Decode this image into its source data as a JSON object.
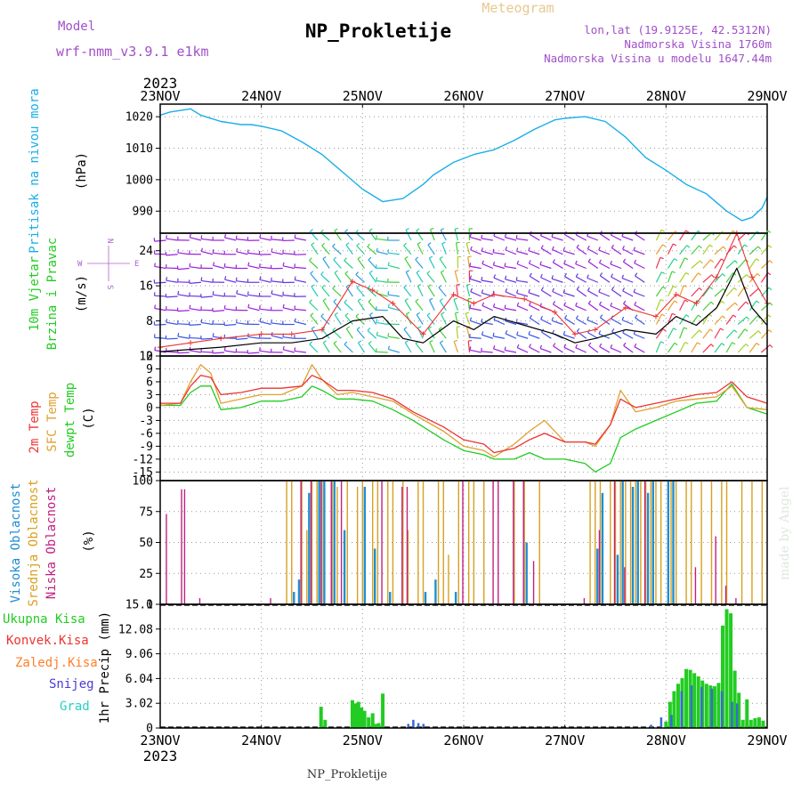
{
  "header": {
    "model_label": "Model",
    "model_value": "wrf-nmm_v3.9.1 e1km",
    "title": "NP_Prokletije",
    "product": "Meteogram",
    "coords": "lon,lat (19.9125E, 42.5312N)",
    "altitude": "Nadmorska Visina 1760m",
    "model_altitude": "Nadmorska Visina u modelu 1647.44m",
    "year_top": "2023",
    "year_bottom": "2023",
    "footer": "NP_Prokletije",
    "credit": "made by Angel"
  },
  "colors": {
    "pressure": "#1aaee8",
    "t2m": "#ee3333",
    "sfc": "#e0a030",
    "dew": "#22cc22",
    "high_cloud": "#1f8fd0",
    "mid_cloud": "#d8a020",
    "low_cloud": "#c02080",
    "total_precip": "#22cc22",
    "conv_precip": "#ee3333",
    "frozen_precip": "#ff7f2a",
    "snow": "#4a3ad8",
    "hail": "#2ad0c0",
    "wind_speed": "#000000",
    "gust": "#ee3333",
    "compass": "#b060d0"
  },
  "chart_data": [
    {
      "panel": "pressure",
      "type": "line",
      "ylabel": "Pritisak na nivou mora",
      "unit": "(hPa)",
      "ylim": [
        983,
        1024
      ],
      "yticks": [
        990,
        1000,
        1010,
        1020
      ],
      "grid": true,
      "x_days": [
        0,
        0.1,
        0.2,
        0.3,
        0.4,
        0.5,
        0.6,
        0.7,
        0.8,
        0.9,
        1,
        1.2,
        1.4,
        1.6,
        1.8,
        2,
        2.2,
        2.4,
        2.6,
        2.7,
        2.9,
        3.1,
        3.3,
        3.5,
        3.7,
        3.9,
        4,
        4.2,
        4.4,
        4.6,
        4.8,
        5,
        5.2,
        5.4,
        5.6,
        5.75,
        5.85,
        5.95
      ],
      "values": [
        1020.5,
        1021.5,
        1022,
        1022.5,
        1020.5,
        1019.5,
        1018.5,
        1018,
        1017.5,
        1017.5,
        1017,
        1015.5,
        1012,
        1008,
        1002.5,
        997,
        993,
        994,
        998.5,
        1001.5,
        1005.5,
        1008,
        1009.5,
        1012.5,
        1016,
        1019,
        1019.5,
        1020,
        1018.5,
        1013.5,
        1007,
        1003,
        998.5,
        995.5,
        990,
        987,
        988,
        991
      ],
      "values_tail": [
        994.5
      ]
    },
    {
      "panel": "wind",
      "type": "line",
      "ylabel": "10m Vjetar",
      "ylabel2": "Brzina i Pravac",
      "unit": "(m/s)",
      "ylim": [
        0,
        28
      ],
      "yticks": [
        0,
        8,
        16,
        24
      ],
      "compass": {
        "north": "N",
        "south": "S",
        "east": "E",
        "west": "W"
      },
      "series": [
        {
          "name": "speed",
          "x_days": [
            0,
            0.3,
            0.6,
            1,
            1.3,
            1.6,
            1.9,
            2.2,
            2.4,
            2.6,
            2.9,
            3.1,
            3.3,
            3.6,
            3.9,
            4.1,
            4.3,
            4.6,
            4.9,
            5.1,
            5.3,
            5.5,
            5.7,
            5.85,
            6
          ],
          "values": [
            1,
            1.5,
            2,
            3,
            3,
            4,
            8,
            9,
            4,
            3,
            8,
            6,
            9,
            7,
            5,
            3,
            4,
            6,
            5,
            9,
            7,
            11,
            20,
            11,
            7
          ]
        },
        {
          "name": "gust",
          "x_days": [
            0,
            0.3,
            0.6,
            1,
            1.3,
            1.6,
            1.9,
            2.1,
            2.3,
            2.6,
            2.9,
            3.1,
            3.3,
            3.6,
            3.9,
            4.1,
            4.3,
            4.6,
            4.9,
            5.1,
            5.3,
            5.5,
            5.7,
            5.85,
            6
          ],
          "values": [
            2,
            3,
            4,
            5,
            5,
            6,
            17,
            15,
            12,
            5,
            14,
            12,
            14,
            13,
            10,
            5,
            6,
            11,
            9,
            14,
            12,
            18,
            28,
            18,
            12
          ]
        }
      ],
      "barbs_direction_deg": [
        [
          0,
          1.55,
          275
        ],
        [
          1.55,
          2.15,
          320
        ],
        [
          2.15,
          2.45,
          280
        ],
        [
          2.45,
          2.85,
          330
        ],
        [
          2.85,
          3.15,
          350
        ],
        [
          3.15,
          3.7,
          285
        ],
        [
          3.7,
          4.2,
          295
        ],
        [
          4.2,
          4.9,
          300
        ],
        [
          4.9,
          5.15,
          30
        ],
        [
          5.15,
          6,
          40
        ]
      ]
    },
    {
      "panel": "temperature",
      "type": "line",
      "ylabels": [
        "2m Temp",
        "SFC Temp",
        "dewpt Temp"
      ],
      "unit": "(C)",
      "ylim": [
        -17,
        12
      ],
      "yticks": [
        -15,
        -12,
        -9,
        -6,
        -3,
        0,
        3,
        6,
        9,
        12
      ],
      "series": [
        {
          "name": "2m Temp",
          "x_days": [
            0,
            0.2,
            0.3,
            0.4,
            0.5,
            0.6,
            0.8,
            1,
            1.2,
            1.4,
            1.5,
            1.6,
            1.75,
            1.9,
            2.1,
            2.3,
            2.5,
            2.8,
            3,
            3.2,
            3.3,
            3.5,
            3.65,
            3.8,
            4,
            4.2,
            4.3,
            4.45,
            4.55,
            4.7,
            4.9,
            5.1,
            5.3,
            5.5,
            5.65,
            5.8,
            6
          ],
          "values": [
            1,
            1,
            5,
            7.5,
            7,
            3,
            3.5,
            4.5,
            4.5,
            5,
            7.5,
            6.5,
            4,
            4,
            3.5,
            2,
            -1,
            -4.5,
            -7.5,
            -8.5,
            -10.5,
            -9.5,
            -7.5,
            -6,
            -8,
            -8,
            -8.5,
            -4,
            2,
            0,
            1,
            2,
            3,
            3.5,
            6,
            2.5,
            1
          ]
        },
        {
          "name": "SFC Temp",
          "x_days": [
            0,
            0.2,
            0.3,
            0.4,
            0.5,
            0.6,
            0.8,
            1,
            1.2,
            1.4,
            1.5,
            1.6,
            1.75,
            1.9,
            2.1,
            2.3,
            2.5,
            2.8,
            3,
            3.2,
            3.3,
            3.5,
            3.65,
            3.8,
            4,
            4.2,
            4.3,
            4.45,
            4.55,
            4.7,
            4.9,
            5.1,
            5.3,
            5.5,
            5.65,
            5.8,
            6
          ],
          "values": [
            0.5,
            1,
            6,
            10,
            8,
            1,
            2,
            3,
            3,
            5,
            10,
            6.5,
            3,
            3.5,
            2.5,
            1.5,
            -1.5,
            -5.5,
            -9,
            -10,
            -11.5,
            -8.5,
            -5.5,
            -3,
            -8,
            -8,
            -9,
            -4,
            4,
            -1,
            0,
            1.5,
            2,
            2.5,
            5,
            0,
            -0.5
          ]
        },
        {
          "name": "dewpt Temp",
          "x_days": [
            0,
            0.2,
            0.3,
            0.4,
            0.5,
            0.6,
            0.8,
            1,
            1.2,
            1.4,
            1.5,
            1.6,
            1.75,
            1.9,
            2.1,
            2.3,
            2.5,
            2.8,
            3,
            3.2,
            3.3,
            3.5,
            3.65,
            3.8,
            4,
            4.2,
            4.3,
            4.45,
            4.55,
            4.7,
            4.9,
            5.1,
            5.3,
            5.5,
            5.65,
            5.8,
            6
          ],
          "values": [
            0.5,
            0.5,
            3.5,
            5,
            5,
            -0.5,
            0,
            1.5,
            1.5,
            2.5,
            5,
            4,
            2,
            2,
            1.5,
            -0.5,
            -3,
            -7.5,
            -10,
            -11,
            -12,
            -12,
            -10.5,
            -12,
            -12,
            -13,
            -15,
            -13,
            -7,
            -5,
            -3,
            -1,
            1,
            1.5,
            5.5,
            0,
            -1.5
          ]
        }
      ]
    },
    {
      "panel": "clouds",
      "type": "bar",
      "ylabels": [
        "Visoka Oblacnost",
        "Srednja Oblacnost",
        "Niska Oblacnost"
      ],
      "unit": "(%)",
      "ylim": [
        0,
        100
      ],
      "yticks": [
        0,
        25,
        50,
        75,
        100
      ],
      "series": [
        {
          "name": "Visoka Oblacnost",
          "x_days": [
            1.3,
            1.35,
            1.45,
            1.55,
            1.6,
            1.7,
            1.8,
            2.0,
            2.1,
            2.25,
            2.6,
            2.7,
            2.9,
            3.6,
            4.3,
            4.35,
            4.5,
            4.55,
            4.65,
            4.7,
            4.8,
            4.85,
            5.0,
            5.05
          ],
          "values": [
            10,
            20,
            90,
            100,
            100,
            100,
            60,
            95,
            45,
            10,
            10,
            20,
            10,
            50,
            45,
            90,
            40,
            100,
            95,
            100,
            90,
            100,
            100,
            100
          ]
        },
        {
          "name": "Srednja Oblacnost",
          "x_days": [
            1.25,
            1.3,
            1.4,
            1.45,
            1.5,
            1.55,
            1.6,
            1.7,
            1.75,
            1.85,
            1.95,
            2.0,
            2.1,
            2.15,
            2.25,
            2.3,
            2.4,
            2.45,
            2.55,
            2.6,
            2.75,
            2.8,
            2.85,
            2.95,
            3.05,
            3.1,
            3.2,
            3.5,
            3.6,
            3.75,
            4.25,
            4.3,
            4.35,
            4.45,
            4.5,
            4.55,
            4.6,
            4.65,
            4.7,
            4.75,
            4.8,
            4.85,
            4.9,
            4.95,
            5.05,
            5.1,
            5.2,
            5.25,
            5.35,
            5.45,
            5.55,
            5.6,
            5.75,
            5.85,
            5.95
          ],
          "values": [
            100,
            100,
            100,
            60,
            100,
            100,
            100,
            100,
            95,
            100,
            95,
            100,
            100,
            100,
            100,
            100,
            100,
            60,
            100,
            100,
            100,
            100,
            40,
            100,
            100,
            100,
            100,
            100,
            100,
            100,
            100,
            100,
            100,
            100,
            100,
            100,
            100,
            100,
            100,
            100,
            100,
            100,
            100,
            100,
            100,
            100,
            100,
            100,
            100,
            100,
            100,
            100,
            100,
            100,
            100
          ]
        },
        {
          "name": "Niska Oblacnost",
          "x_days": [
            0.07,
            0.22,
            0.25,
            0.4,
            1.1,
            1.4,
            1.5,
            1.6,
            1.7,
            1.8,
            2.2,
            2.4,
            2.45,
            3.0,
            3.3,
            3.35,
            3.5,
            3.6,
            3.7,
            4.2,
            4.35,
            4.5,
            4.6,
            4.8,
            5.3,
            5.5,
            5.6,
            5.7
          ],
          "values": [
            73,
            93,
            93,
            5,
            5,
            100,
            100,
            100,
            100,
            100,
            100,
            95,
            95,
            100,
            100,
            100,
            100,
            100,
            35,
            5,
            60,
            100,
            30,
            100,
            30,
            55,
            15,
            5
          ]
        }
      ]
    },
    {
      "panel": "precipitation",
      "type": "bar",
      "ylabels": [
        "Ukupna Kisa",
        "Konvek.Kisa",
        "Zaledj.Kisa",
        "Snijeg",
        "Grad"
      ],
      "unit": "1hr Precip (mm)",
      "ylim": [
        0,
        15.1
      ],
      "yticks": [
        "0",
        "3.02",
        "6.04",
        "9.06",
        "12.08",
        "15.1"
      ],
      "x_ticks": [
        "23NOV",
        "24NOV",
        "25NOV",
        "26NOV",
        "27NOV",
        "28NOV",
        "29NOV"
      ],
      "series": [
        {
          "name": "Ukupna Kisa",
          "x_days": [
            1.59,
            1.63,
            1.9,
            1.93,
            1.96,
            1.99,
            2.02,
            2.06,
            2.1,
            2.13,
            2.16,
            2.2,
            5.0,
            5.04,
            5.08,
            5.12,
            5.16,
            5.2,
            5.24,
            5.28,
            5.32,
            5.36,
            5.4,
            5.44,
            5.48,
            5.52,
            5.56,
            5.6,
            5.64,
            5.68,
            5.72,
            5.76,
            5.8,
            5.84,
            5.88,
            5.92,
            5.96
          ],
          "values": [
            2.6,
            1,
            3.4,
            3,
            3.2,
            2.5,
            2.1,
            1.3,
            1.8,
            0.5,
            0.6,
            4.2,
            0.8,
            3.2,
            4.5,
            5.4,
            6.1,
            7.2,
            7.1,
            6.7,
            6.3,
            5.8,
            5.4,
            5.2,
            5.1,
            5.5,
            12.5,
            14.5,
            14.0,
            7.0,
            4.3,
            1.0,
            3.5,
            1.0,
            1.2,
            1.3,
            0.9
          ]
        },
        {
          "name": "Snijeg",
          "x_days": [
            2.45,
            2.5,
            2.55,
            2.6,
            4.85,
            4.95,
            5.05,
            5.15,
            5.25,
            5.35,
            5.45,
            5.55,
            5.65,
            5.7
          ],
          "values": [
            0.5,
            1,
            0.6,
            0.5,
            0.4,
            1.3,
            1.6,
            4.5,
            5.2,
            5.0,
            4.8,
            4.5,
            3.2,
            3.0
          ]
        }
      ]
    }
  ]
}
